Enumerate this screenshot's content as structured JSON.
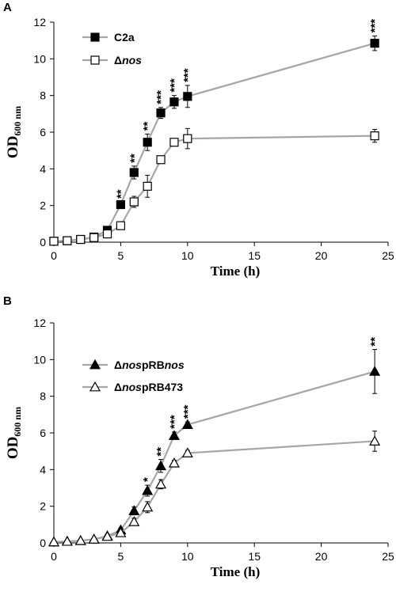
{
  "chart_data": [
    {
      "type": "line",
      "panel": "A",
      "xlabel": "Time (h)",
      "ylabel": {
        "main": "OD",
        "sub": "600 nm"
      },
      "xlim": [
        0,
        25
      ],
      "ylim": [
        0,
        12
      ],
      "xticks": [
        0,
        5,
        10,
        15,
        20,
        25
      ],
      "yticks": [
        0,
        2,
        4,
        6,
        8,
        10,
        12
      ],
      "grid": false,
      "legend_position": "top-left",
      "x": [
        0,
        1,
        2,
        3,
        4,
        5,
        6,
        7,
        8,
        9,
        10,
        24
      ],
      "series": [
        {
          "name": "C2a",
          "legend_parts": [
            {
              "text": "C2a",
              "italic": false
            }
          ],
          "marker": "square-filled",
          "values": [
            0.05,
            0.08,
            0.15,
            0.28,
            0.65,
            2.05,
            3.8,
            5.45,
            7.05,
            7.65,
            7.95,
            10.85
          ],
          "errors": [
            0.03,
            0.03,
            0.04,
            0.06,
            0.1,
            0.15,
            0.35,
            0.45,
            0.3,
            0.35,
            0.6,
            0.4
          ]
        },
        {
          "name": "Δnos",
          "legend_parts": [
            {
              "text": "Δ",
              "italic": false
            },
            {
              "text": "nos",
              "italic": true
            }
          ],
          "marker": "square-open",
          "values": [
            0.05,
            0.08,
            0.15,
            0.25,
            0.45,
            0.9,
            2.2,
            3.05,
            4.5,
            5.45,
            5.65,
            5.8
          ],
          "errors": [
            0.03,
            0.03,
            0.04,
            0.05,
            0.08,
            0.1,
            0.3,
            0.6,
            0.2,
            0.2,
            0.55,
            0.35
          ]
        }
      ],
      "significance": [
        {
          "x": 5,
          "label": "**"
        },
        {
          "x": 6,
          "label": "**"
        },
        {
          "x": 7,
          "label": "**"
        },
        {
          "x": 8,
          "label": "***"
        },
        {
          "x": 9,
          "label": "***"
        },
        {
          "x": 10,
          "label": "***"
        },
        {
          "x": 24,
          "label": "***"
        }
      ]
    },
    {
      "type": "line",
      "panel": "B",
      "xlabel": "Time (h)",
      "ylabel": {
        "main": "OD",
        "sub": "600 nm"
      },
      "xlim": [
        0,
        25
      ],
      "ylim": [
        0,
        12
      ],
      "xticks": [
        0,
        5,
        10,
        15,
        20,
        25
      ],
      "yticks": [
        0,
        2,
        4,
        6,
        8,
        10,
        12
      ],
      "grid": false,
      "legend_position": "top-left",
      "x": [
        0,
        1,
        2,
        3,
        4,
        5,
        6,
        7,
        8,
        9,
        10,
        24
      ],
      "series": [
        {
          "name": "ΔnospRBnos",
          "legend_parts": [
            {
              "text": "Δ",
              "italic": false
            },
            {
              "text": "nos",
              "italic": true
            },
            {
              "text": "pRB",
              "italic": false
            },
            {
              "text": "nos",
              "italic": true
            }
          ],
          "marker": "triangle-filled",
          "values": [
            0.05,
            0.08,
            0.12,
            0.2,
            0.38,
            0.7,
            1.75,
            2.85,
            4.2,
            5.85,
            6.45,
            9.35
          ],
          "errors": [
            0.03,
            0.03,
            0.04,
            0.05,
            0.07,
            0.12,
            0.22,
            0.3,
            0.35,
            0.2,
            0.15,
            1.2
          ]
        },
        {
          "name": "ΔnospRB473",
          "legend_parts": [
            {
              "text": "Δ",
              "italic": false
            },
            {
              "text": "nos",
              "italic": true
            },
            {
              "text": "pRB473",
              "italic": false
            }
          ],
          "marker": "triangle-open",
          "values": [
            0.05,
            0.08,
            0.12,
            0.2,
            0.35,
            0.55,
            1.15,
            1.95,
            3.2,
            4.35,
            4.9,
            5.55
          ],
          "errors": [
            0.03,
            0.03,
            0.04,
            0.05,
            0.06,
            0.1,
            0.2,
            0.3,
            0.25,
            0.15,
            0.15,
            0.55
          ]
        }
      ],
      "significance": [
        {
          "x": 7,
          "label": "*"
        },
        {
          "x": 8,
          "label": "**"
        },
        {
          "x": 9,
          "label": "***"
        },
        {
          "x": 10,
          "label": "***"
        },
        {
          "x": 24,
          "label": "**"
        }
      ]
    }
  ]
}
